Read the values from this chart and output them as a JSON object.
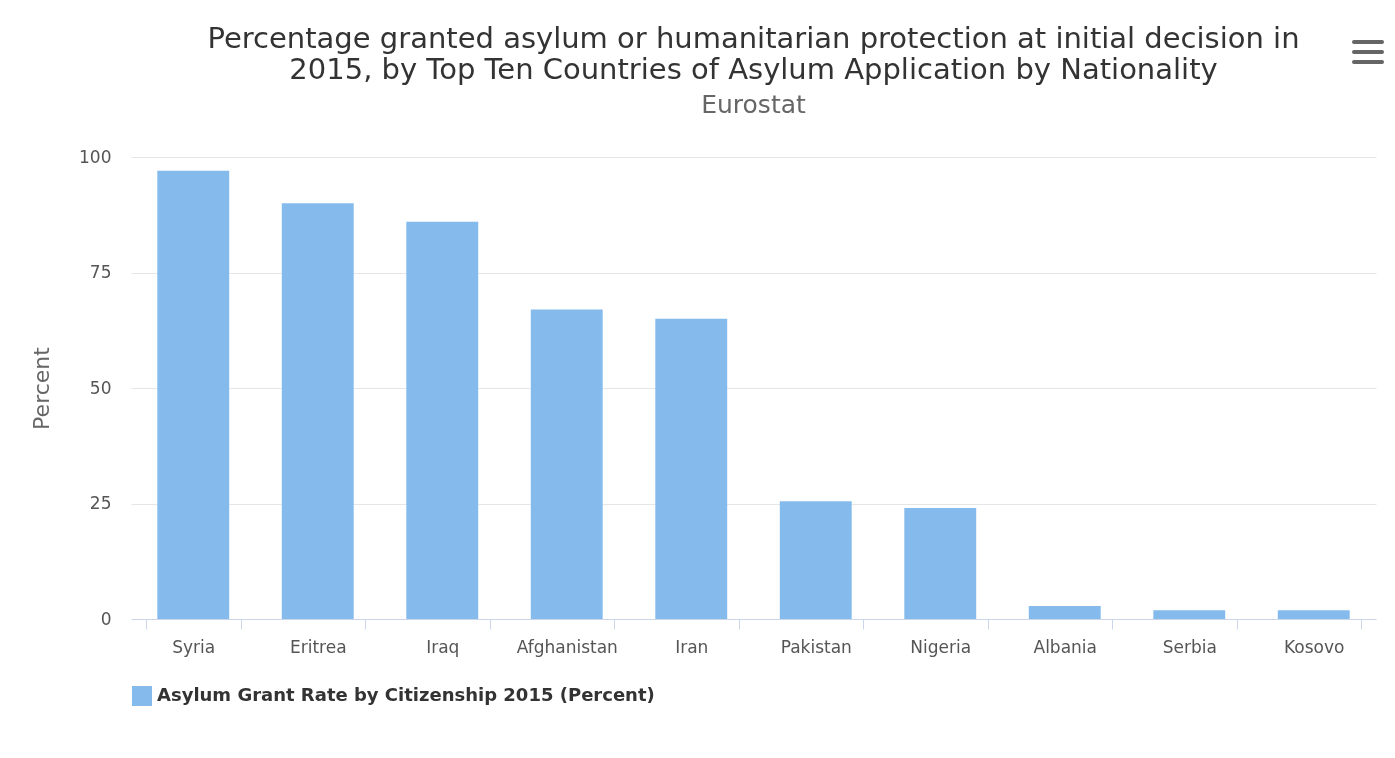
{
  "chart_data": {
    "type": "bar",
    "title": "Percentage granted asylum or humanitarian protection at initial decision in 2015, by Top Ten Countries of Asylum Application by Nationality",
    "subtitle": "Eurostat",
    "ylabel": "Percent",
    "categories": [
      "Syria",
      "Eritrea",
      "Iraq",
      "Afghanistan",
      "Iran",
      "Pakistan",
      "Nigeria",
      "Albania",
      "Serbia",
      "Kosovo"
    ],
    "series": [
      {
        "name": "Asylum Grant Rate by Citizenship 2015 (Percent)",
        "color": "#85bbec",
        "values": [
          97,
          90,
          86,
          67,
          65,
          25.5,
          24,
          2.8,
          1.9,
          1.9
        ]
      }
    ],
    "ylim": [
      0,
      100
    ],
    "yticks": [
      0,
      25,
      50,
      75,
      100
    ],
    "grid": "y",
    "legend": "bottom"
  }
}
